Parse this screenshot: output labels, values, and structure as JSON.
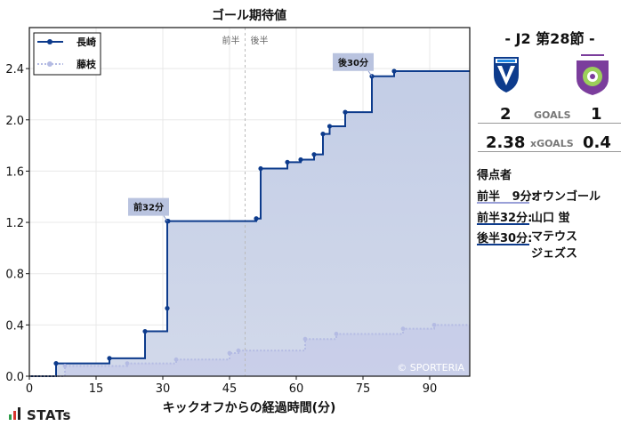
{
  "chart_data": {
    "type": "line",
    "step": true,
    "title": "ゴール期待値",
    "xlabel": "キックオフからの経過時間(分)",
    "ylabel": "",
    "xlim": [
      0,
      99
    ],
    "ylim": [
      0,
      2.72
    ],
    "x_ticks": [
      0,
      15,
      30,
      45,
      60,
      75,
      90
    ],
    "y_ticks": [
      0.0,
      0.4,
      0.8,
      1.2,
      1.6,
      2.0,
      2.4
    ],
    "y_tick_labels": [
      "0.0",
      "0.4",
      "0.8",
      "1.2",
      "1.6",
      "2.0",
      "2.4"
    ],
    "half_labels": [
      "前半",
      "後半"
    ],
    "halftime_x": 48.5,
    "legend_position": "top-left",
    "watermark": "© SPORTERIA",
    "series": [
      {
        "name": "長崎",
        "color": "#0d3b8c",
        "fill": "#c7d0e6",
        "x": [
          0,
          6,
          18,
          26,
          31,
          31,
          31.2,
          51,
          52,
          58,
          61,
          64,
          66,
          67.5,
          71,
          77,
          82,
          99
        ],
        "y": [
          0,
          0.1,
          0.14,
          0.35,
          0.53,
          1.21,
          1.21,
          1.23,
          1.62,
          1.67,
          1.69,
          1.73,
          1.89,
          1.95,
          2.06,
          2.34,
          2.38,
          2.38
        ]
      },
      {
        "name": "藤枝",
        "color": "#b4bbe3",
        "fill": "#c6cbe8",
        "x": [
          0,
          8,
          22,
          33,
          45,
          47,
          62,
          69,
          84,
          91,
          99
        ],
        "y": [
          0,
          0.08,
          0.1,
          0.13,
          0.18,
          0.2,
          0.29,
          0.33,
          0.37,
          0.4,
          0.4
        ]
      }
    ],
    "annotations": [
      {
        "label": "前32分",
        "x": 31,
        "y": 1.21
      },
      {
        "label": "後30分",
        "x": 77,
        "y": 2.34
      }
    ]
  },
  "brand": "STATs",
  "match": {
    "title": "-  J2 第28節  -",
    "home": {
      "score": "2",
      "xg": "2.38",
      "crest_color": "#0d3b8c"
    },
    "away": {
      "score": "1",
      "xg": "0.4",
      "crest_color": "#7b3d9c"
    },
    "goals_label": "GOALS",
    "xgoals_label": "xGOALS"
  },
  "scorers": {
    "title": "得点者",
    "items": [
      {
        "minute": "前半   9分:",
        "name": "オウンゴール",
        "team": "away"
      },
      {
        "minute": "前半32分:",
        "name": "山口   蛍",
        "team": "home"
      },
      {
        "minute": "後半30分:",
        "name": "マテウス\nジェズス",
        "team": "home"
      }
    ]
  }
}
